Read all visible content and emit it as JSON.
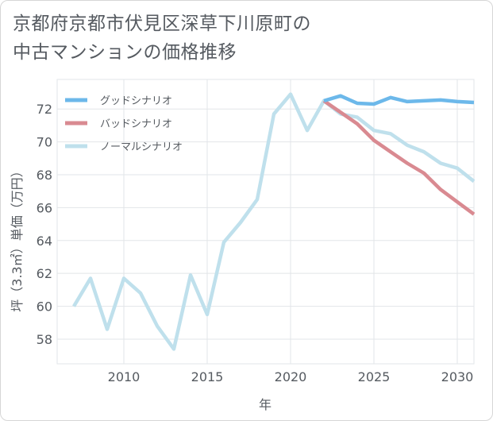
{
  "title_line1": "京都府京都市伏見区深草下川原町の",
  "title_line2": "中古マンションの価格推移",
  "chart_data": {
    "type": "line",
    "xlabel": "年",
    "ylabel": "坪（3.3㎡）単価（万円）",
    "xlim": [
      2006,
      2031
    ],
    "ylim": [
      56.5,
      73.8
    ],
    "xticks": [
      2010,
      2015,
      2020,
      2025,
      2030
    ],
    "yticks": [
      58,
      60,
      62,
      64,
      66,
      68,
      70,
      72
    ],
    "grid": true,
    "legend_position": "top-left",
    "series": [
      {
        "name": "グッドシナリオ",
        "color": "#6cb8ea",
        "x": [
          2022,
          2023,
          2024,
          2025,
          2026,
          2027,
          2028,
          2029,
          2030,
          2031
        ],
        "y": [
          72.5,
          72.8,
          72.35,
          72.3,
          72.7,
          72.45,
          72.5,
          72.55,
          72.45,
          72.4
        ]
      },
      {
        "name": "バッドシナリオ",
        "color": "#d98a91",
        "x": [
          2022,
          2023,
          2024,
          2025,
          2026,
          2027,
          2028,
          2029,
          2030,
          2031
        ],
        "y": [
          72.5,
          71.8,
          71.1,
          70.1,
          69.4,
          68.7,
          68.1,
          67.1,
          66.35,
          65.6
        ]
      },
      {
        "name": "ノーマルシナリオ",
        "color": "#bfe0ec",
        "x": [
          2007,
          2008,
          2009,
          2010,
          2011,
          2012,
          2013,
          2014,
          2015,
          2016,
          2017,
          2018,
          2019,
          2020,
          2021,
          2022,
          2023,
          2024,
          2025,
          2026,
          2027,
          2028,
          2029,
          2030,
          2031
        ],
        "y": [
          60.0,
          61.7,
          58.6,
          61.7,
          60.8,
          58.8,
          57.4,
          61.9,
          59.5,
          63.9,
          65.1,
          66.5,
          71.7,
          72.9,
          70.7,
          72.5,
          71.7,
          71.5,
          70.7,
          70.5,
          69.8,
          69.4,
          68.7,
          68.4,
          67.6
        ]
      }
    ]
  }
}
